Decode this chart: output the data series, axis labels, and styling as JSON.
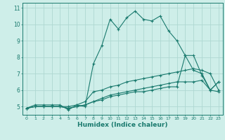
{
  "bg_color": "#ceeee9",
  "line_color": "#1a7a6e",
  "grid_color": "#aed8d2",
  "xlabel": "Humidex (Indice chaleur)",
  "ylim": [
    4.5,
    11.3
  ],
  "xlim": [
    -0.5,
    23.5
  ],
  "yticks": [
    5,
    6,
    7,
    8,
    9,
    10,
    11
  ],
  "xticks": [
    0,
    1,
    2,
    3,
    4,
    5,
    6,
    7,
    8,
    9,
    10,
    11,
    12,
    13,
    14,
    15,
    16,
    17,
    18,
    19,
    20,
    21,
    22,
    23
  ],
  "line1_x": [
    0,
    1,
    2,
    3,
    4,
    5,
    6,
    7,
    8,
    9,
    10,
    11,
    12,
    13,
    14,
    15,
    16,
    17,
    18,
    19,
    20,
    21,
    22,
    23
  ],
  "line1_y": [
    4.9,
    5.1,
    5.1,
    5.1,
    5.1,
    4.8,
    5.1,
    5.0,
    7.6,
    8.7,
    10.3,
    9.7,
    10.4,
    10.8,
    10.3,
    10.2,
    10.5,
    9.6,
    9.0,
    8.1,
    7.2,
    7.0,
    6.0,
    6.5
  ],
  "line2_x": [
    0,
    1,
    2,
    3,
    4,
    5,
    6,
    7,
    8,
    9,
    10,
    11,
    12,
    13,
    14,
    15,
    16,
    17,
    18,
    19,
    20,
    21,
    22,
    23
  ],
  "line2_y": [
    4.9,
    5.0,
    5.0,
    5.0,
    5.0,
    5.0,
    5.1,
    5.3,
    5.9,
    6.0,
    6.2,
    6.3,
    6.5,
    6.6,
    6.7,
    6.8,
    6.9,
    7.0,
    7.1,
    7.2,
    7.3,
    7.2,
    7.0,
    6.0
  ],
  "line3_x": [
    0,
    1,
    2,
    3,
    4,
    5,
    6,
    7,
    8,
    9,
    10,
    11,
    12,
    13,
    14,
    15,
    16,
    17,
    18,
    19,
    20,
    21,
    22,
    23
  ],
  "line3_y": [
    4.9,
    5.0,
    5.0,
    5.0,
    5.0,
    4.9,
    5.0,
    5.1,
    5.3,
    5.5,
    5.7,
    5.8,
    5.9,
    6.0,
    6.1,
    6.2,
    6.3,
    6.4,
    6.5,
    6.5,
    6.5,
    6.6,
    6.0,
    5.9
  ],
  "line4_x": [
    0,
    1,
    2,
    3,
    4,
    5,
    6,
    7,
    8,
    9,
    10,
    11,
    12,
    13,
    14,
    15,
    16,
    17,
    18,
    19,
    20,
    21,
    22,
    23
  ],
  "line4_y": [
    4.9,
    5.0,
    5.0,
    5.0,
    5.0,
    4.9,
    5.0,
    5.1,
    5.3,
    5.4,
    5.6,
    5.7,
    5.8,
    5.9,
    5.9,
    6.0,
    6.1,
    6.2,
    6.2,
    8.1,
    8.1,
    6.9,
    6.0,
    6.5
  ]
}
